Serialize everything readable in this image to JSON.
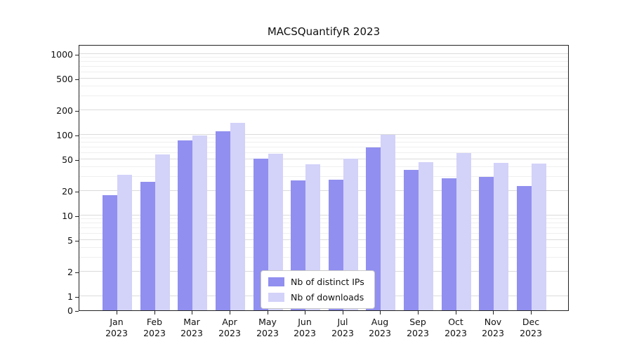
{
  "chart_data": {
    "type": "bar",
    "title": "MACSQuantifyR 2023",
    "categories": [
      "Jan",
      "Feb",
      "Mar",
      "Apr",
      "May",
      "Jun",
      "Jul",
      "Aug",
      "Sep",
      "Oct",
      "Nov",
      "Dec"
    ],
    "x_tick_suffix": "2023",
    "series": [
      {
        "name": "Nb of distinct IPs",
        "color": "#918fef",
        "values": [
          18,
          26,
          85,
          110,
          51,
          27,
          28,
          70,
          37,
          29,
          30,
          23
        ]
      },
      {
        "name": "Nb of downloads",
        "color": "#d3d2f9",
        "values": [
          32,
          57,
          98,
          140,
          58,
          43,
          51,
          100,
          46,
          60,
          45,
          44
        ]
      }
    ],
    "yscale": "symlog",
    "ylim": [
      0,
      1000
    ],
    "yticks": [
      0,
      1,
      2,
      5,
      10,
      20,
      50,
      100,
      200,
      500,
      1000
    ],
    "grid": true,
    "legend_position": "lower center"
  }
}
